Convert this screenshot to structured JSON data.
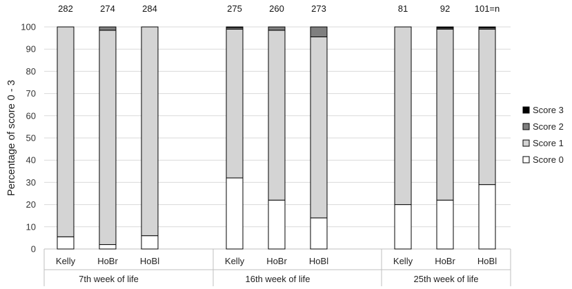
{
  "chart_data": {
    "type": "bar",
    "stacked": true,
    "ylabel": "Percentage of score 0 - 3",
    "ylim": [
      0,
      100
    ],
    "yticks": [
      0,
      10,
      20,
      30,
      40,
      50,
      60,
      70,
      80,
      90,
      100
    ],
    "grid": true,
    "legend_position": "right",
    "groups": [
      {
        "label": "7th week of life",
        "categories": [
          "Kelly",
          "HoBr",
          "HoBl"
        ],
        "n": [
          "282",
          "274",
          "284"
        ]
      },
      {
        "label": "16th week of life",
        "categories": [
          "Kelly",
          "HoBr",
          "HoBl"
        ],
        "n": [
          "275",
          "260",
          "273"
        ]
      },
      {
        "label": "25th week of life",
        "categories": [
          "Kelly",
          "HoBr",
          "HoBl"
        ],
        "n": [
          "81",
          "92",
          "101=n"
        ]
      }
    ],
    "series": [
      {
        "name": "Score 0",
        "color": "#ffffff",
        "values": [
          5.5,
          2,
          6,
          32,
          22,
          14,
          20,
          22,
          29
        ]
      },
      {
        "name": "Score 1",
        "color": "#d4d4d4",
        "values": [
          94.5,
          96.5,
          94,
          67,
          76.5,
          81.5,
          80,
          77,
          70
        ]
      },
      {
        "name": "Score 2",
        "color": "#7f7f7f",
        "values": [
          0,
          1.5,
          0,
          0.7,
          1.5,
          4.5,
          0,
          0.5,
          0.6
        ]
      },
      {
        "name": "Score 3",
        "color": "#000000",
        "values": [
          0,
          0,
          0,
          0.3,
          0,
          0,
          0,
          0.5,
          0.4
        ]
      }
    ],
    "legend_order": [
      "Score 3",
      "Score 2",
      "Score 1",
      "Score 0"
    ]
  }
}
